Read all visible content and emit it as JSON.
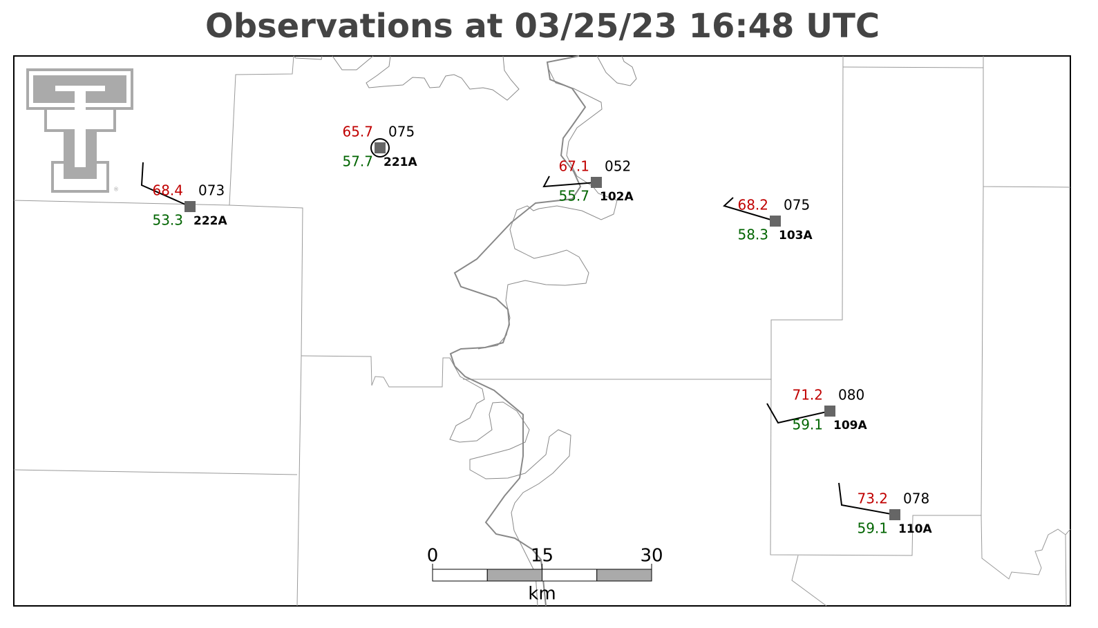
{
  "title": "Observations at 03/25/23 16:48 UTC",
  "stations": [
    {
      "id": "222A",
      "temperature": 68.4,
      "dewpoint": 53.3,
      "pressure": "073"
    },
    {
      "id": "221A",
      "temperature": 65.7,
      "dewpoint": 57.7,
      "pressure": "075"
    },
    {
      "id": "102A",
      "temperature": 67.1,
      "dewpoint": 55.7,
      "pressure": "052"
    },
    {
      "id": "103A",
      "temperature": 68.2,
      "dewpoint": 58.3,
      "pressure": "075"
    },
    {
      "id": "109A",
      "temperature": 71.2,
      "dewpoint": 59.1,
      "pressure": "080"
    },
    {
      "id": "110A",
      "temperature": 73.2,
      "dewpoint": 59.1,
      "pressure": "078"
    }
  ],
  "scale_bar": {
    "ticks": [
      0,
      15,
      30
    ],
    "unit": "km"
  }
}
